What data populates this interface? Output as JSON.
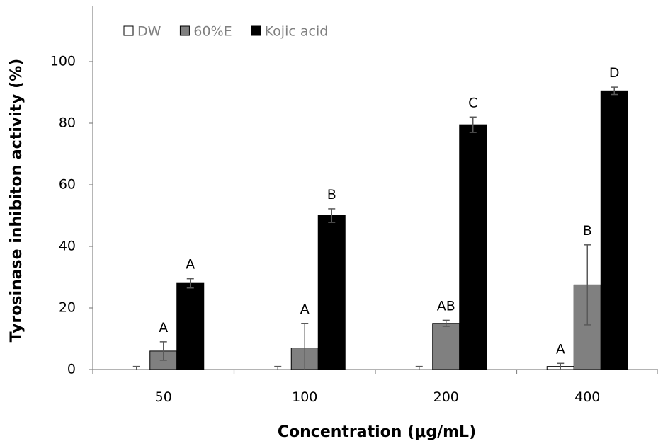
{
  "chart_data": {
    "type": "bar",
    "title": "",
    "xlabel": "Concentration (μg/mL)",
    "ylabel": "Tyrosinase inhibiton activity (%)",
    "categories": [
      "50",
      "100",
      "200",
      "400"
    ],
    "ylim": [
      0,
      120
    ],
    "yticks": [
      0,
      20,
      40,
      60,
      80,
      100
    ],
    "grid": false,
    "legend_position": "top-left",
    "series": [
      {
        "name": "DW",
        "color": "#ffffff",
        "values": [
          0,
          0,
          0,
          1
        ],
        "errors": [
          1,
          1,
          1,
          1
        ],
        "letters": [
          "",
          "",
          "",
          "A"
        ]
      },
      {
        "name": "60%E",
        "color": "#808080",
        "values": [
          6,
          7,
          15,
          27.5
        ],
        "errors": [
          3,
          8,
          1,
          13
        ],
        "letters": [
          "A",
          "A",
          "AB",
          "B"
        ]
      },
      {
        "name": "Kojic acid",
        "color": "#000000",
        "values": [
          28,
          50,
          79.5,
          90.5
        ],
        "errors": [
          1.5,
          2.2,
          2.5,
          1.2
        ],
        "letters": [
          "A",
          "B",
          "C",
          "D"
        ]
      }
    ]
  }
}
